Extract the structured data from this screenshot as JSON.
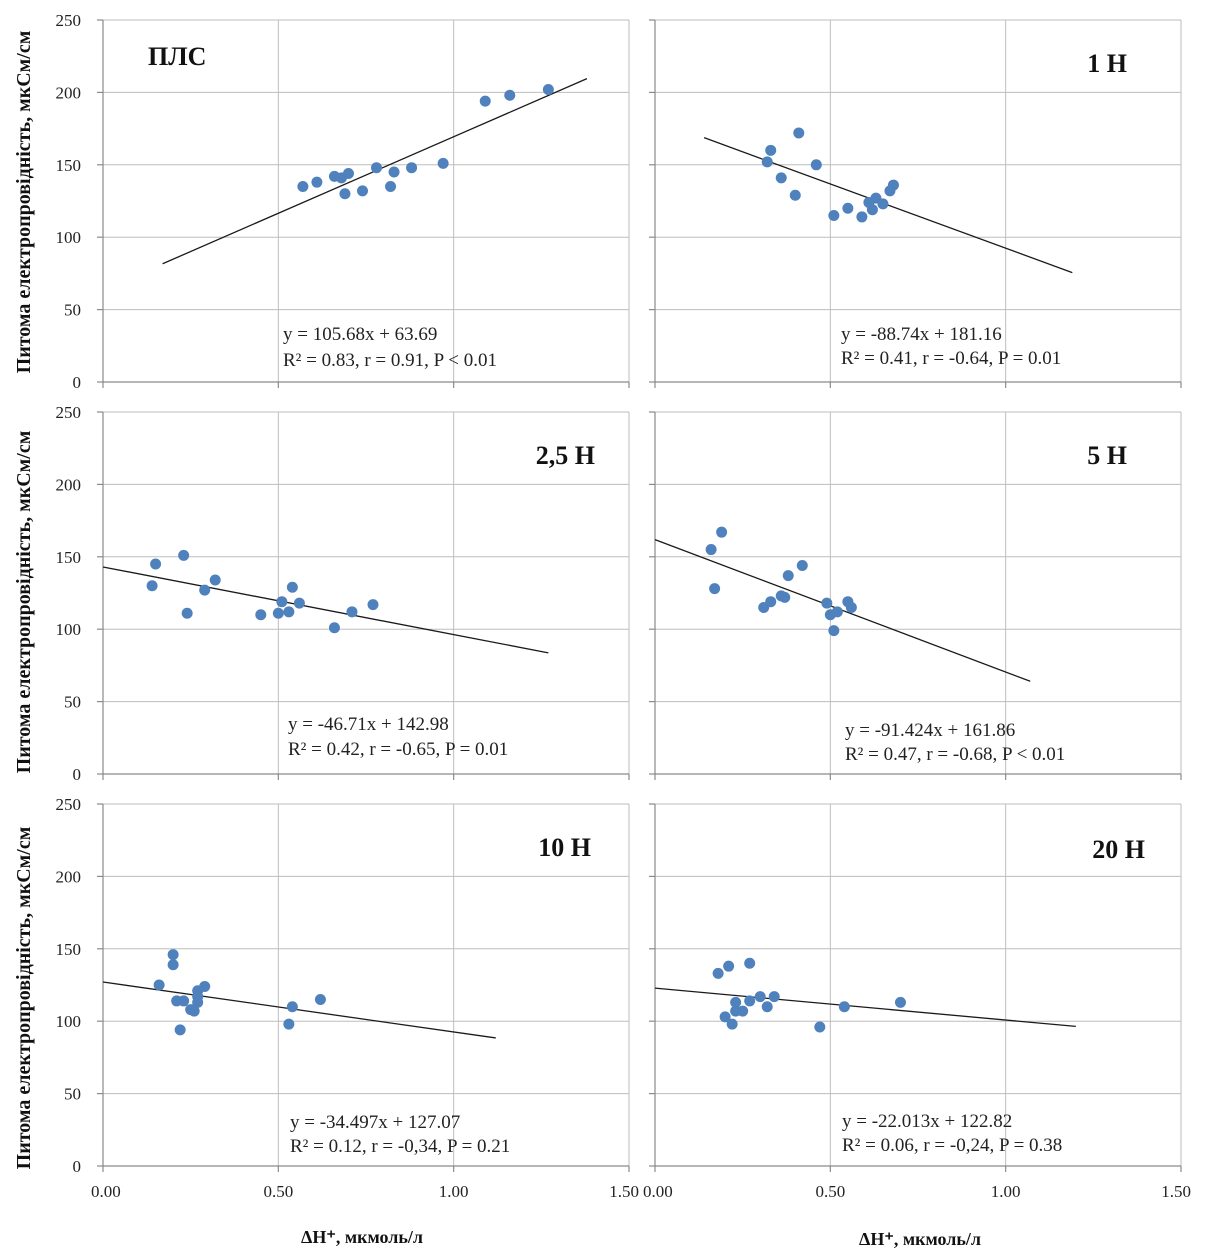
{
  "y_axis_label": "Питома електропровідність, мкСм/см",
  "x_axis_label": "ΔH⁺, мкмоль/л",
  "y_ticks": [
    "0",
    "50",
    "100",
    "150",
    "200",
    "250"
  ],
  "x_ticks": [
    "0.00",
    "0.50",
    "1.00",
    "1.50"
  ],
  "marker_color": "#4F81BD",
  "trend_color": "#1a1a1a",
  "grid": true,
  "chart_data": [
    {
      "type": "scatter",
      "title": "ПЛС",
      "xlim": [
        0,
        1.5
      ],
      "ylim": [
        0,
        250
      ],
      "equation": "y = 105.68x + 63.69",
      "stats": "R² = 0.83, r = 0.91, P < 0.01",
      "trendline": {
        "slope": 105.68,
        "intercept": 63.69,
        "x_range": [
          0.17,
          1.38
        ]
      },
      "points": [
        {
          "x": 0.57,
          "y": 135
        },
        {
          "x": 0.61,
          "y": 138
        },
        {
          "x": 0.66,
          "y": 142
        },
        {
          "x": 0.68,
          "y": 141
        },
        {
          "x": 0.69,
          "y": 130
        },
        {
          "x": 0.7,
          "y": 144
        },
        {
          "x": 0.74,
          "y": 132
        },
        {
          "x": 0.78,
          "y": 148
        },
        {
          "x": 0.82,
          "y": 135
        },
        {
          "x": 0.83,
          "y": 145
        },
        {
          "x": 0.88,
          "y": 148
        },
        {
          "x": 0.97,
          "y": 151
        },
        {
          "x": 1.09,
          "y": 194
        },
        {
          "x": 1.16,
          "y": 198
        },
        {
          "x": 1.27,
          "y": 202
        }
      ]
    },
    {
      "type": "scatter",
      "title": "1 Н",
      "xlim": [
        0,
        1.5
      ],
      "ylim": [
        0,
        250
      ],
      "equation": "y = -88.74x + 181.16",
      "stats": "R² = 0.41, r = -0.64, P = 0.01",
      "trendline": {
        "slope": -88.74,
        "intercept": 181.16,
        "x_range": [
          0.14,
          1.19
        ]
      },
      "points": [
        {
          "x": 0.32,
          "y": 152
        },
        {
          "x": 0.33,
          "y": 160
        },
        {
          "x": 0.36,
          "y": 141
        },
        {
          "x": 0.4,
          "y": 129
        },
        {
          "x": 0.41,
          "y": 172
        },
        {
          "x": 0.46,
          "y": 150
        },
        {
          "x": 0.51,
          "y": 115
        },
        {
          "x": 0.55,
          "y": 120
        },
        {
          "x": 0.59,
          "y": 114
        },
        {
          "x": 0.61,
          "y": 124
        },
        {
          "x": 0.62,
          "y": 119
        },
        {
          "x": 0.63,
          "y": 127
        },
        {
          "x": 0.65,
          "y": 123
        },
        {
          "x": 0.67,
          "y": 132
        },
        {
          "x": 0.68,
          "y": 136
        }
      ]
    },
    {
      "type": "scatter",
      "title": "2,5 Н",
      "xlim": [
        0,
        1.5
      ],
      "ylim": [
        0,
        250
      ],
      "equation": "y = -46.71x + 142.98",
      "stats": "R² = 0.42, r = -0.65, P = 0.01",
      "trendline": {
        "slope": -46.71,
        "intercept": 142.98,
        "x_range": [
          0.0,
          1.27
        ]
      },
      "points": [
        {
          "x": 0.14,
          "y": 130
        },
        {
          "x": 0.15,
          "y": 145
        },
        {
          "x": 0.23,
          "y": 151
        },
        {
          "x": 0.24,
          "y": 111
        },
        {
          "x": 0.29,
          "y": 127
        },
        {
          "x": 0.32,
          "y": 134
        },
        {
          "x": 0.45,
          "y": 110
        },
        {
          "x": 0.5,
          "y": 111
        },
        {
          "x": 0.51,
          "y": 119
        },
        {
          "x": 0.53,
          "y": 112
        },
        {
          "x": 0.54,
          "y": 129
        },
        {
          "x": 0.56,
          "y": 118
        },
        {
          "x": 0.66,
          "y": 101
        },
        {
          "x": 0.71,
          "y": 112
        },
        {
          "x": 0.77,
          "y": 117
        }
      ]
    },
    {
      "type": "scatter",
      "title": "5 Н",
      "xlim": [
        0,
        1.5
      ],
      "ylim": [
        0,
        250
      ],
      "equation": "y = -91.424x + 161.86",
      "stats": "R² = 0.47, r = -0.68, P < 0.01",
      "trendline": {
        "slope": -91.424,
        "intercept": 161.86,
        "x_range": [
          0.0,
          1.07
        ]
      },
      "points": [
        {
          "x": 0.16,
          "y": 155
        },
        {
          "x": 0.17,
          "y": 128
        },
        {
          "x": 0.19,
          "y": 167
        },
        {
          "x": 0.31,
          "y": 115
        },
        {
          "x": 0.33,
          "y": 119
        },
        {
          "x": 0.36,
          "y": 123
        },
        {
          "x": 0.37,
          "y": 122
        },
        {
          "x": 0.38,
          "y": 137
        },
        {
          "x": 0.42,
          "y": 144
        },
        {
          "x": 0.49,
          "y": 118
        },
        {
          "x": 0.5,
          "y": 110
        },
        {
          "x": 0.51,
          "y": 99
        },
        {
          "x": 0.52,
          "y": 112
        },
        {
          "x": 0.55,
          "y": 119
        },
        {
          "x": 0.56,
          "y": 115
        }
      ]
    },
    {
      "type": "scatter",
      "title": "10 Н",
      "xlim": [
        0,
        1.5
      ],
      "ylim": [
        0,
        250
      ],
      "equation": "y = -34.497x + 127.07",
      "stats": "R² = 0.12, r = -0,34, P = 0.21",
      "trendline": {
        "slope": -34.497,
        "intercept": 127.07,
        "x_range": [
          0.0,
          1.12
        ]
      },
      "points": [
        {
          "x": 0.16,
          "y": 125
        },
        {
          "x": 0.2,
          "y": 146
        },
        {
          "x": 0.2,
          "y": 139
        },
        {
          "x": 0.21,
          "y": 114
        },
        {
          "x": 0.22,
          "y": 94
        },
        {
          "x": 0.23,
          "y": 114
        },
        {
          "x": 0.25,
          "y": 108
        },
        {
          "x": 0.26,
          "y": 107
        },
        {
          "x": 0.27,
          "y": 113
        },
        {
          "x": 0.27,
          "y": 117
        },
        {
          "x": 0.27,
          "y": 121
        },
        {
          "x": 0.29,
          "y": 124
        },
        {
          "x": 0.53,
          "y": 98
        },
        {
          "x": 0.54,
          "y": 110
        },
        {
          "x": 0.62,
          "y": 115
        }
      ]
    },
    {
      "type": "scatter",
      "title": "20 Н",
      "xlim": [
        0,
        1.5
      ],
      "ylim": [
        0,
        250
      ],
      "equation": "y = -22.013x + 122.82",
      "stats": "R² = 0.06, r = -0,24, P = 0.38",
      "trendline": {
        "slope": -22.013,
        "intercept": 122.82,
        "x_range": [
          0.0,
          1.2
        ]
      },
      "points": [
        {
          "x": 0.18,
          "y": 133
        },
        {
          "x": 0.2,
          "y": 103
        },
        {
          "x": 0.21,
          "y": 138
        },
        {
          "x": 0.22,
          "y": 98
        },
        {
          "x": 0.23,
          "y": 113
        },
        {
          "x": 0.23,
          "y": 107
        },
        {
          "x": 0.25,
          "y": 107
        },
        {
          "x": 0.27,
          "y": 114
        },
        {
          "x": 0.27,
          "y": 140
        },
        {
          "x": 0.3,
          "y": 117
        },
        {
          "x": 0.32,
          "y": 110
        },
        {
          "x": 0.34,
          "y": 117
        },
        {
          "x": 0.47,
          "y": 96
        },
        {
          "x": 0.54,
          "y": 110
        },
        {
          "x": 0.7,
          "y": 113
        }
      ]
    }
  ]
}
